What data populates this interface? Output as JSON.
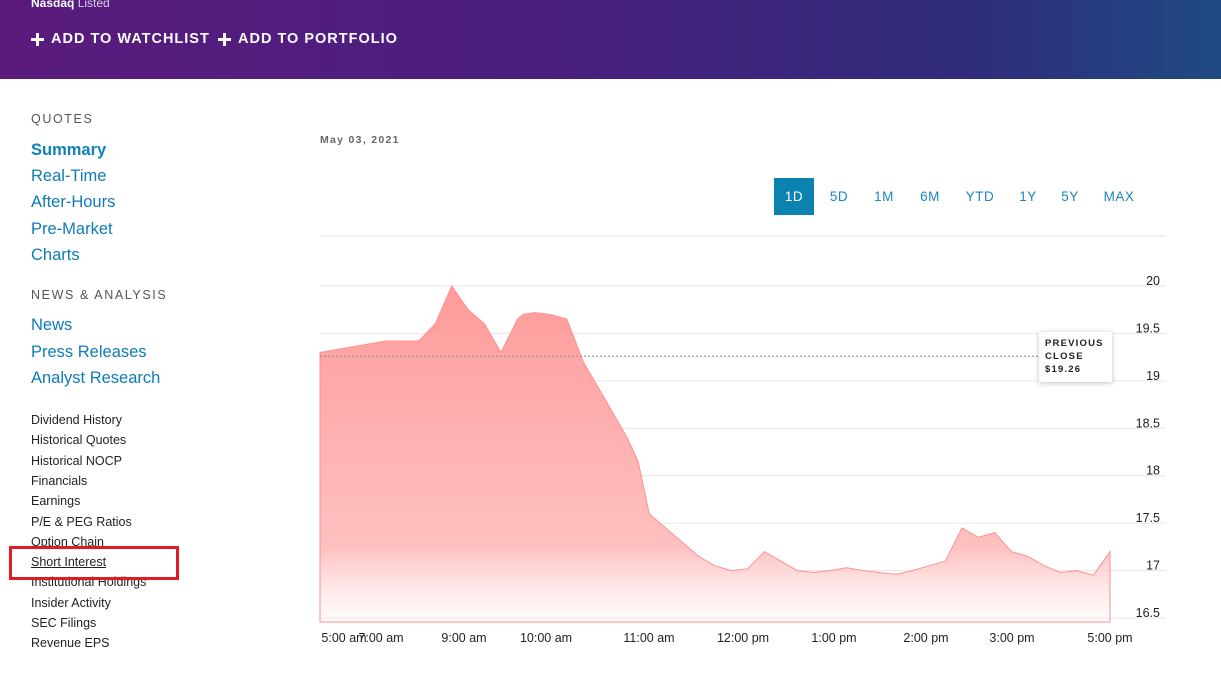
{
  "header": {
    "listed_brand": "Nasdaq",
    "listed_suffix": "Listed",
    "add_watchlist": "ADD TO WATCHLIST",
    "add_portfolio": "ADD TO PORTFOLIO"
  },
  "sidebar": {
    "quotes_heading": "QUOTES",
    "quotes": [
      "Summary",
      "Real-Time",
      "After-Hours",
      "Pre-Market",
      "Charts"
    ],
    "news_heading": "NEWS & ANALYSIS",
    "news": [
      "News",
      "Press Releases",
      "Analyst Research"
    ],
    "links": [
      "Dividend History",
      "Historical Quotes",
      "Historical NOCP",
      "Financials",
      "Earnings",
      "P/E & PEG Ratios",
      "Option Chain",
      "Short Interest",
      "Institutional Holdings",
      "Insider Activity",
      "SEC Filings",
      "Revenue EPS"
    ]
  },
  "chart": {
    "date": "May 03, 2021",
    "ranges": [
      "1D",
      "5D",
      "1M",
      "6M",
      "YTD",
      "1Y",
      "5Y",
      "MAX"
    ],
    "active_range": "1D",
    "prev_close_line1": "PREVIOUS",
    "prev_close_line2": "CLOSE",
    "prev_close_value": "$19.26"
  },
  "chart_data": {
    "type": "area",
    "title": "",
    "xlabel": "",
    "ylabel": "",
    "x_tick_labels": [
      "5:00 am",
      "7:00 am",
      "9:00 am",
      "10:00 am",
      "11:00 am",
      "12:00 pm",
      "1:00 pm",
      "2:00 pm",
      "3:00 pm",
      "5:00 pm"
    ],
    "y_tick_labels": [
      "20",
      "19.5",
      "19",
      "18.5",
      "18",
      "17.5",
      "17",
      "16.5"
    ],
    "ylim": [
      16.45,
      20.5
    ],
    "grid": true,
    "fill_color": "#ff9a9a",
    "reference_line": 19.26,
    "series": [
      {
        "x": [
          "5:00",
          "6:00",
          "6:30",
          "6:45",
          "7:00",
          "7:15",
          "7:30",
          "7:45",
          "8:00",
          "8:05",
          "8:15",
          "8:30",
          "8:45",
          "9:00",
          "9:15",
          "9:30",
          "9:40",
          "9:50",
          "10:00",
          "10:15",
          "10:30",
          "10:45",
          "11:00",
          "11:15",
          "11:30",
          "11:45",
          "12:00",
          "12:15",
          "12:30",
          "12:45",
          "13:00",
          "13:15",
          "13:30",
          "13:45",
          "14:00",
          "14:15",
          "14:30",
          "14:45",
          "15:00",
          "15:15",
          "15:30",
          "15:45",
          "16:00",
          "16:15",
          "16:30",
          "16:45",
          "17:00"
        ],
        "y": [
          19.3,
          19.42,
          19.42,
          19.6,
          20.0,
          19.75,
          19.6,
          19.3,
          19.65,
          19.7,
          19.72,
          19.7,
          19.65,
          19.2,
          18.9,
          18.6,
          18.4,
          18.15,
          17.6,
          17.45,
          17.3,
          17.15,
          17.05,
          17.0,
          17.02,
          17.2,
          17.1,
          17.0,
          16.98,
          17.0,
          17.03,
          17.0,
          16.98,
          16.96,
          17.0,
          17.05,
          17.1,
          17.45,
          17.35,
          17.4,
          17.2,
          17.15,
          17.05,
          16.98,
          17.0,
          16.95,
          17.2
        ]
      }
    ]
  }
}
